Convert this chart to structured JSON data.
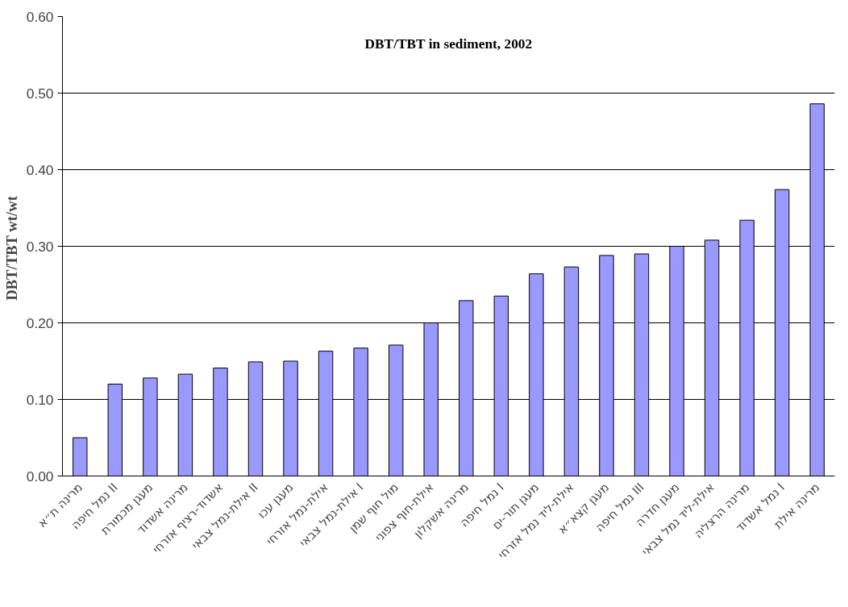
{
  "chart_data": {
    "type": "bar",
    "title": "DBT/TBT in sediment, 2002",
    "ylabel": "DBT/TBT  wt/wt",
    "categories": [
      "מרינה ת״א",
      "נמל חיפה II",
      "מעגן מכמורת",
      "מרינה אשדוד",
      "אשדוד-רציף אזרחי",
      "אילת-נמל צבאי II",
      "מעגן עכו",
      "אילת-נמל אזרחי",
      "אילת-נמל צבאי I",
      "מול חוף שמן",
      "אילת-חוף צפוני",
      "מרינה אשקלון",
      "נמל חיפה I",
      "מעגן תור-ים",
      "אילת-ליד נמל אזרחי",
      "מעגן קצא״א",
      "נמל חיפה III",
      "מעגן חדרה",
      "אילת-ליד נמל צבאי",
      "מרינה הרצליה",
      "נמל אשדוד I",
      "מרינה אילת"
    ],
    "values": [
      0.05,
      0.12,
      0.128,
      0.133,
      0.141,
      0.149,
      0.15,
      0.163,
      0.167,
      0.171,
      0.2,
      0.229,
      0.235,
      0.264,
      0.273,
      0.288,
      0.29,
      0.3,
      0.308,
      0.334,
      0.374,
      0.486
    ],
    "color": "#9999ff",
    "ylim": [
      0,
      0.6
    ],
    "yticks": [
      {
        "value": 0,
        "label": "0.00"
      },
      {
        "value": 0.1,
        "label": "0.10"
      },
      {
        "value": 0.2,
        "label": "0.20"
      },
      {
        "value": 0.3,
        "label": "0.30"
      },
      {
        "value": 0.4,
        "label": "0.40"
      },
      {
        "value": 0.5,
        "label": "0.50"
      },
      {
        "value": 0.6,
        "label": "0.60"
      }
    ],
    "grid": "y"
  }
}
